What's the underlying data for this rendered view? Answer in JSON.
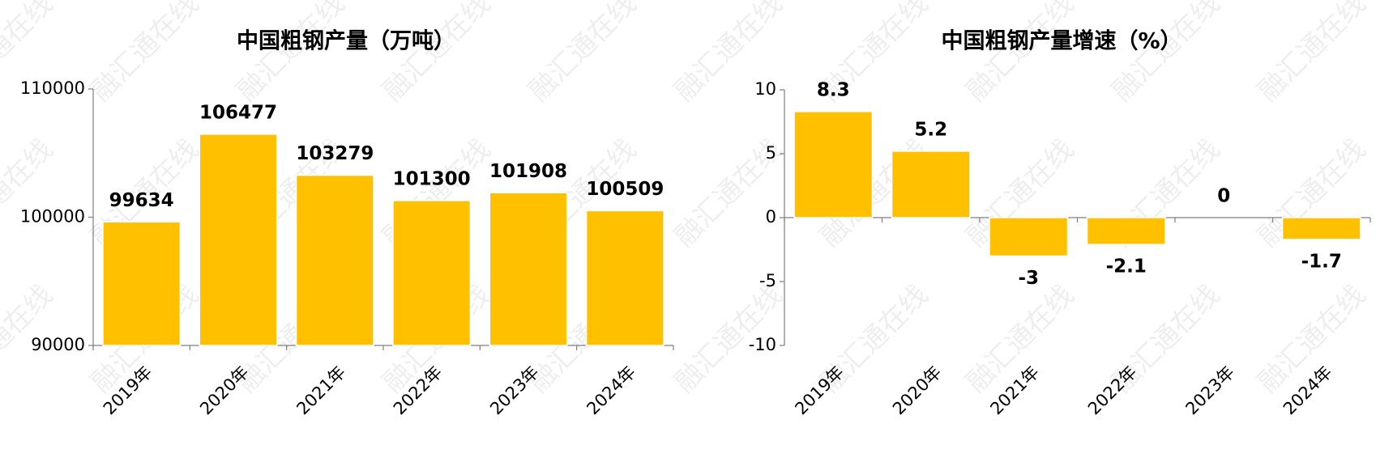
{
  "watermark": "融汇通在线",
  "chart_data": [
    {
      "type": "bar",
      "title": "中国粗钢产量（万吨）",
      "categories": [
        "2019年",
        "2020年",
        "2021年",
        "2022年",
        "2023年",
        "2024年"
      ],
      "values": [
        99634,
        106477,
        103279,
        101300,
        101908,
        100509
      ],
      "color": "#FFC000",
      "ylim": [
        90000,
        110000
      ],
      "yticks": [
        90000,
        100000,
        110000
      ]
    },
    {
      "type": "bar",
      "title": "中国粗钢产量增速（%）",
      "categories": [
        "2019年",
        "2020年",
        "2021年",
        "2022年",
        "2023年",
        "2024年"
      ],
      "values": [
        8.3,
        5.2,
        -3,
        -2.1,
        0,
        -1.7
      ],
      "color": "#FFC000",
      "ylim": [
        -10,
        10
      ],
      "yticks": [
        -10,
        -5,
        0,
        5,
        10
      ]
    }
  ]
}
